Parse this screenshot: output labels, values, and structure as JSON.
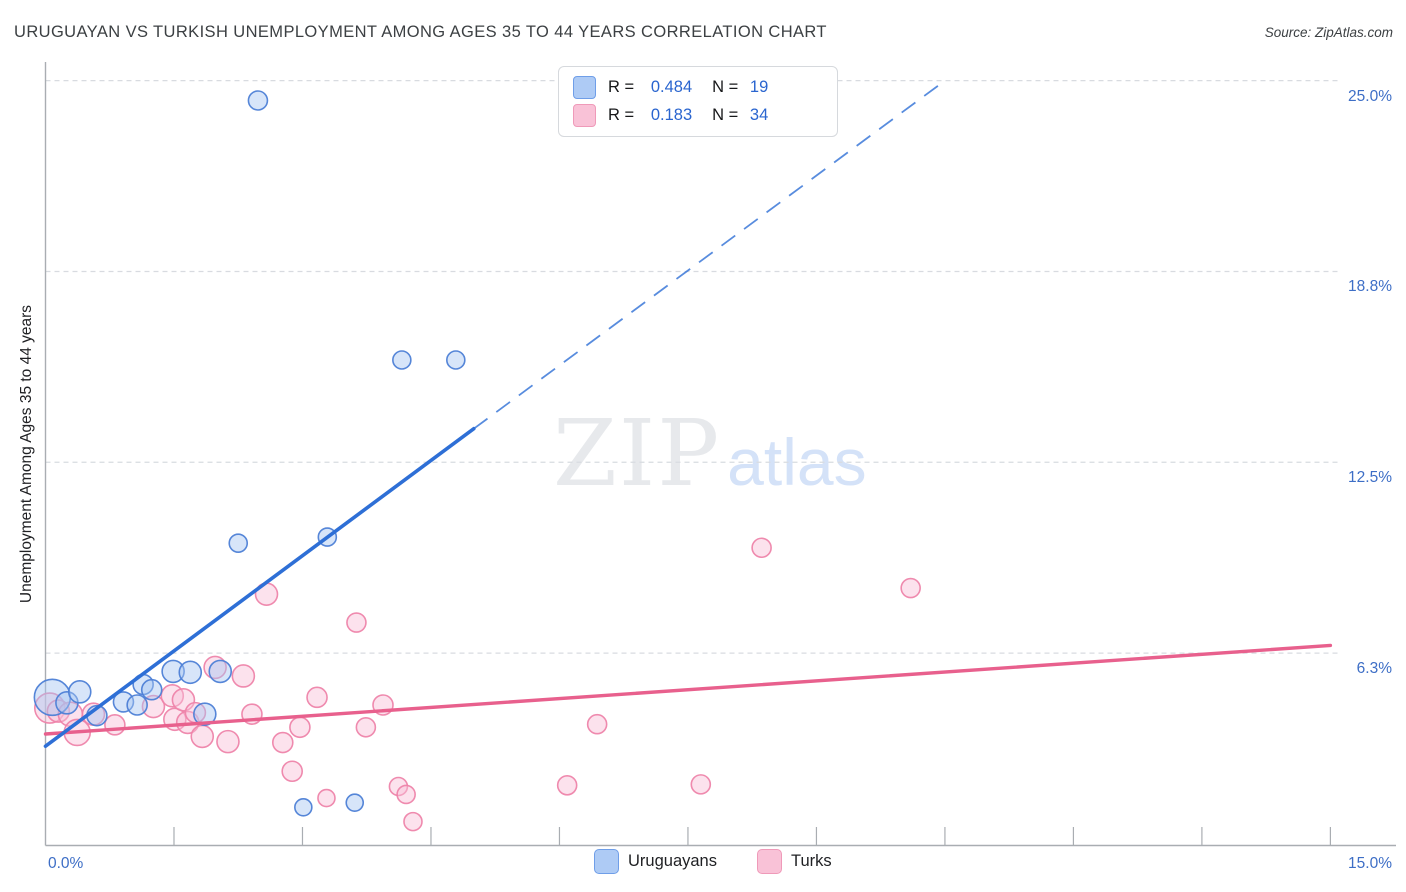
{
  "header": {
    "title": "URUGUAYAN VS TURKISH UNEMPLOYMENT AMONG AGES 35 TO 44 YEARS CORRELATION CHART",
    "source": "Source: ZipAtlas.com"
  },
  "stats_legend": {
    "rows": [
      {
        "series": "Uruguayans",
        "r_label": "R =",
        "r_value": "0.484",
        "n_label": "N =",
        "n_value": "19"
      },
      {
        "series": "Turks",
        "r_label": "R =",
        "r_value": "0.183",
        "n_label": "N =",
        "n_value": "34"
      }
    ]
  },
  "y_axis_title": "Unemployment Among Ages 35 to 44 years",
  "x_axis": {
    "min_label": "0.0%",
    "max_label": "15.0%"
  },
  "bottom_legend": {
    "items": [
      {
        "label": "Uruguayans"
      },
      {
        "label": "Turks"
      }
    ]
  },
  "watermark": {
    "part1": "ZIP",
    "part2": "atlas"
  },
  "colors": {
    "blue_stroke": "#4d7fd6",
    "blue_fill": "#a6c6f2",
    "blue_line": "#2e6fd6",
    "pink_stroke": "#ee84aa",
    "pink_fill": "#f8bed6",
    "pink_line": "#e8608d",
    "gridline": "#d8dbe0",
    "axis": "#a9adb2",
    "accent_text": "#3d6ec6"
  },
  "chart_data": {
    "type": "scatter",
    "title": "URUGUAYAN VS TURKISH UNEMPLOYMENT AMONG AGES 35 TO 44 YEARS CORRELATION CHART",
    "xlabel": "",
    "ylabel": "Unemployment Among Ages 35 to 44 years",
    "xlim": [
      0,
      15
    ],
    "ylim": [
      0,
      26
    ],
    "unit": "%",
    "grid": "dashed-horizontal",
    "x_ticks": [
      1.5,
      3,
      4.5,
      6,
      7.5,
      9,
      10.5,
      12,
      13.5,
      15
    ],
    "y_gridlines": [
      {
        "value": 25.0,
        "label": "25.0%"
      },
      {
        "value": 18.75,
        "label": "18.8%"
      },
      {
        "value": 12.5,
        "label": "12.5%"
      },
      {
        "value": 6.25,
        "label": "6.3%"
      }
    ],
    "series": [
      {
        "name": "Turks",
        "R": 0.183,
        "N": 34,
        "points": [
          [
            0.05,
            4.45,
            15
          ],
          [
            0.15,
            4.35,
            11
          ],
          [
            0.29,
            4.25,
            12
          ],
          [
            0.37,
            3.65,
            13
          ],
          [
            0.56,
            4.25,
            11
          ],
          [
            0.81,
            3.9,
            10
          ],
          [
            1.26,
            4.5,
            11
          ],
          [
            1.48,
            4.85,
            11
          ],
          [
            1.51,
            4.08,
            11
          ],
          [
            1.61,
            4.72,
            11
          ],
          [
            1.66,
            3.98,
            11
          ],
          [
            1.75,
            4.3,
            10
          ],
          [
            1.83,
            3.52,
            11
          ],
          [
            1.98,
            5.78,
            11
          ],
          [
            2.13,
            3.35,
            11
          ],
          [
            2.31,
            5.5,
            11
          ],
          [
            2.41,
            4.25,
            10
          ],
          [
            2.58,
            8.18,
            11
          ],
          [
            2.77,
            3.32,
            10
          ],
          [
            2.88,
            2.38,
            10
          ],
          [
            2.97,
            3.82,
            10
          ],
          [
            3.17,
            4.8,
            10
          ],
          [
            3.28,
            1.5,
            8.5
          ],
          [
            3.63,
            7.25,
            9.5
          ],
          [
            3.74,
            3.82,
            9.5
          ],
          [
            3.94,
            4.55,
            10
          ],
          [
            4.12,
            1.88,
            9
          ],
          [
            4.21,
            1.62,
            9
          ],
          [
            4.29,
            0.73,
            9
          ],
          [
            6.09,
            1.92,
            9.5
          ],
          [
            6.44,
            3.92,
            9.5
          ],
          [
            7.65,
            1.95,
            9.5
          ],
          [
            8.36,
            9.7,
            9.5
          ],
          [
            10.1,
            8.38,
            9.5
          ]
        ],
        "trend": {
          "solid": [
            [
              0,
              3.6
            ],
            [
              15,
              6.5
            ]
          ]
        }
      },
      {
        "name": "Uruguayans",
        "R": 0.484,
        "N": 19,
        "points": [
          [
            2.48,
            24.35,
            9.5
          ],
          [
            4.16,
            15.85,
            9
          ],
          [
            4.79,
            15.85,
            9
          ],
          [
            3.29,
            10.05,
            9
          ],
          [
            2.25,
            9.85,
            9
          ],
          [
            0.08,
            4.8,
            18
          ],
          [
            0.25,
            4.62,
            11
          ],
          [
            0.4,
            4.98,
            11
          ],
          [
            0.6,
            4.2,
            10
          ],
          [
            0.91,
            4.65,
            10
          ],
          [
            1.07,
            4.55,
            10
          ],
          [
            1.14,
            5.22,
            10
          ],
          [
            1.24,
            5.05,
            10
          ],
          [
            1.49,
            5.65,
            11
          ],
          [
            1.69,
            5.62,
            11
          ],
          [
            2.04,
            5.65,
            11
          ],
          [
            1.86,
            4.25,
            11
          ],
          [
            3.01,
            1.2,
            8.5
          ],
          [
            3.61,
            1.35,
            8.5
          ]
        ],
        "trend": {
          "solid": [
            [
              0,
              3.2
            ],
            [
              5.0,
              13.6
            ]
          ],
          "dashed": [
            [
              5.0,
              13.6
            ],
            [
              10.5,
              25.0
            ]
          ]
        }
      }
    ]
  }
}
